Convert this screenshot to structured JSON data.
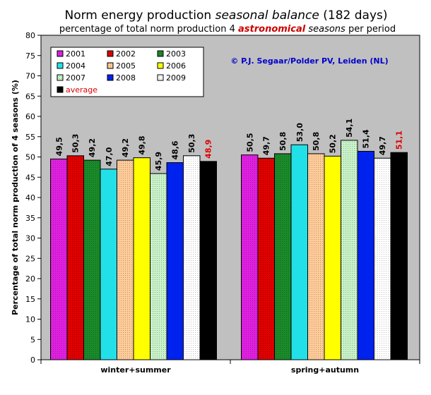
{
  "chart_data": {
    "type": "bar",
    "title_parts": [
      "Norm energy production ",
      "seasonal balance",
      "  (182 days)"
    ],
    "subtitle_parts": [
      "percentage of total norm production 4 ",
      "astronomical",
      " seasons",
      "  per period"
    ],
    "credit": "© P.J. Segaar/Polder PV, Leiden (NL)",
    "ylabel": "Percentage of total norm production of 4 seasons (%)",
    "xlabel": "",
    "ylim": [
      0,
      80
    ],
    "ytick_step": 5,
    "ytick_labels": [
      "0",
      "5",
      "10",
      "15",
      "20",
      "25",
      "30",
      "35",
      "40",
      "45",
      "50",
      "55",
      "60",
      "65",
      "70",
      "75",
      "80"
    ],
    "grid": false,
    "legend_position": "top-left",
    "categories": [
      "winter+summer",
      "spring+autumn"
    ],
    "series": [
      {
        "name": "2001",
        "color": "#e020e0",
        "pattern": "dots",
        "values": [
          49.5,
          50.5
        ],
        "labels": [
          "49,5",
          "50,5"
        ]
      },
      {
        "name": "2002",
        "color": "#e00000",
        "pattern": "dots",
        "values": [
          50.3,
          49.7
        ],
        "labels": [
          "50,3",
          "49,7"
        ]
      },
      {
        "name": "2003",
        "color": "#1a8a2a",
        "pattern": "dots",
        "values": [
          49.2,
          50.8
        ],
        "labels": [
          "49,2",
          "50,8"
        ]
      },
      {
        "name": "2004",
        "color": "#22e0e8",
        "pattern": "solid",
        "values": [
          47.0,
          53.0
        ],
        "labels": [
          "47,0",
          "53,0"
        ]
      },
      {
        "name": "2005",
        "color": "#ffcc99",
        "pattern": "dots",
        "values": [
          49.2,
          50.8
        ],
        "labels": [
          "49,2",
          "50,8"
        ]
      },
      {
        "name": "2006",
        "color": "#ffff00",
        "pattern": "solid",
        "values": [
          49.8,
          50.2
        ],
        "labels": [
          "49,8",
          "50,2"
        ]
      },
      {
        "name": "2007",
        "color": "#c8f2c8",
        "pattern": "dots",
        "values": [
          45.9,
          54.1
        ],
        "labels": [
          "45,9",
          "54,1"
        ]
      },
      {
        "name": "2008",
        "color": "#0022ee",
        "pattern": "solid",
        "values": [
          48.6,
          51.4
        ],
        "labels": [
          "48,6",
          "51,4"
        ]
      },
      {
        "name": "2009",
        "color": "#ffffff",
        "pattern": "dots",
        "values": [
          50.3,
          49.7
        ],
        "labels": [
          "50,3",
          "49,7"
        ]
      },
      {
        "name": "average",
        "color": "#000000",
        "pattern": "solid",
        "values": [
          48.9,
          51.1
        ],
        "labels": [
          "48,9",
          "51,1"
        ],
        "label_color": "#e00000"
      }
    ],
    "colors": {
      "plot_background": "#c0c0c0",
      "average_label": "#e00000",
      "title_italic_red": "#cc0000",
      "credit": "#0000cc"
    }
  }
}
